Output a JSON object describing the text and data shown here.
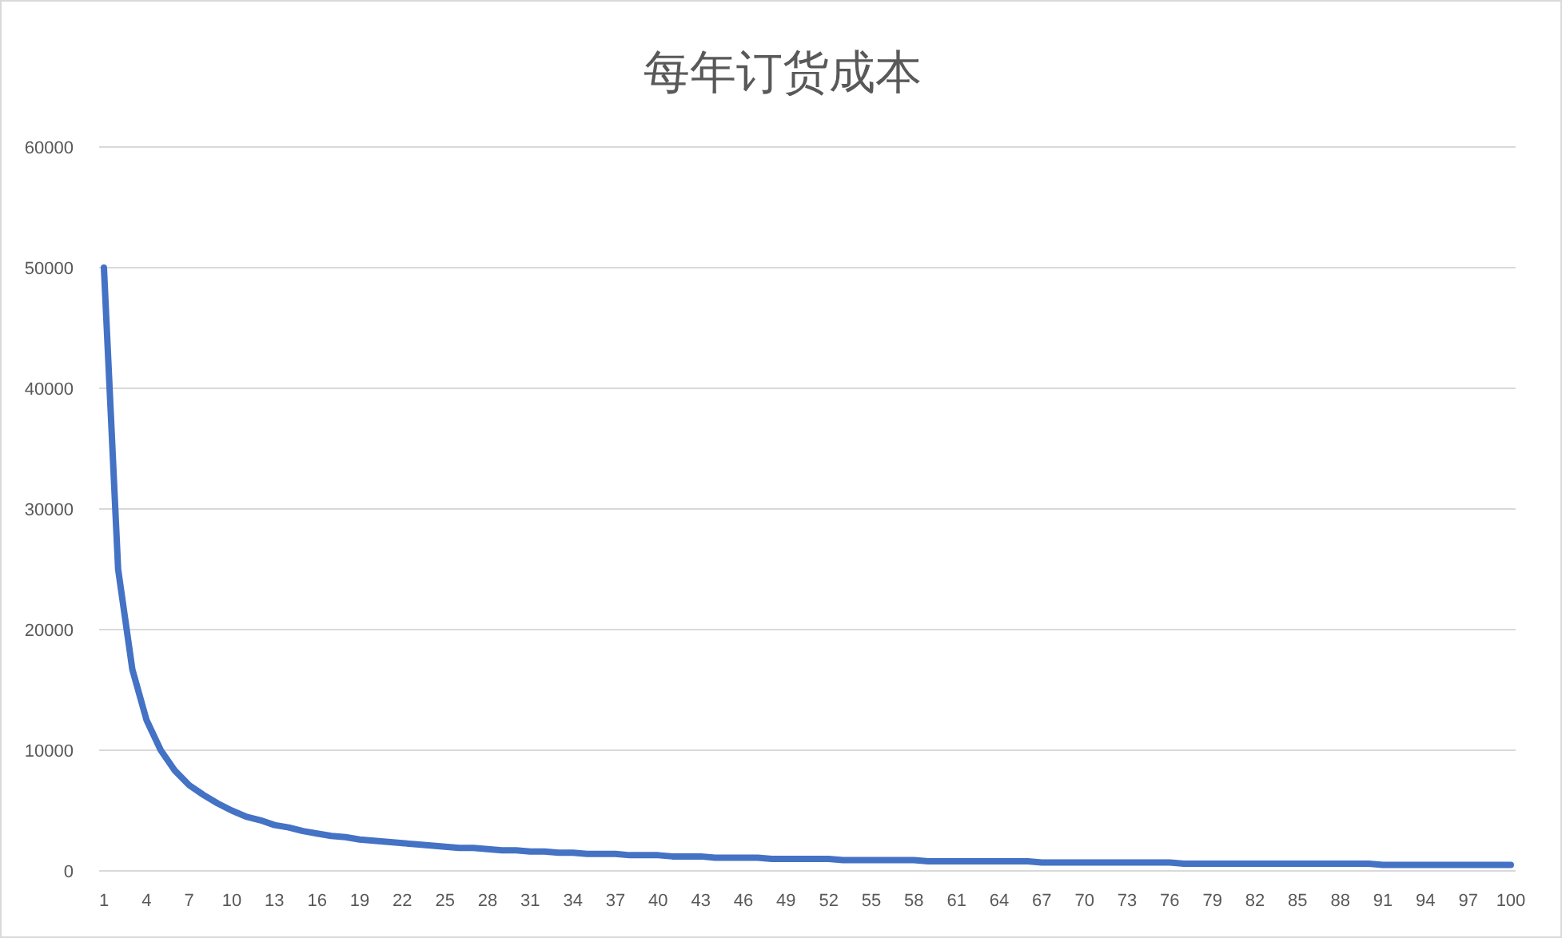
{
  "chart_data": {
    "type": "line",
    "title": "每年订货成本",
    "categories": [
      "1",
      null,
      null,
      "4",
      null,
      null,
      "7",
      null,
      null,
      "10",
      null,
      null,
      "13",
      null,
      null,
      "16",
      null,
      null,
      "19",
      null,
      null,
      "22",
      null,
      null,
      "25",
      null,
      null,
      "28",
      null,
      null,
      "31",
      null,
      null,
      "34",
      null,
      null,
      "37",
      null,
      null,
      "40",
      null,
      null,
      "43",
      null,
      null,
      "46",
      null,
      null,
      "49",
      null,
      null,
      "52",
      null,
      null,
      "55",
      null,
      null,
      "58",
      null,
      null,
      "61",
      null,
      null,
      "64",
      null,
      null,
      "67",
      null,
      null,
      "70",
      null,
      null,
      "73",
      null,
      null,
      "76",
      null,
      null,
      "79",
      null,
      null,
      "82",
      null,
      null,
      "85",
      null,
      null,
      "88",
      null,
      null,
      "91",
      null,
      null,
      "94",
      null,
      null,
      "97",
      null,
      null,
      "100"
    ],
    "values": [
      50000,
      25000,
      16700,
      12500,
      10000,
      8300,
      7100,
      6300,
      5600,
      5000,
      4500,
      4200,
      3800,
      3600,
      3300,
      3100,
      2900,
      2800,
      2600,
      2500,
      2400,
      2300,
      2200,
      2100,
      2000,
      1900,
      1900,
      1800,
      1700,
      1700,
      1600,
      1600,
      1500,
      1500,
      1400,
      1400,
      1400,
      1300,
      1300,
      1300,
      1200,
      1200,
      1200,
      1100,
      1100,
      1100,
      1100,
      1000,
      1000,
      1000,
      1000,
      1000,
      900,
      900,
      900,
      900,
      900,
      900,
      800,
      800,
      800,
      800,
      800,
      800,
      800,
      800,
      700,
      700,
      700,
      700,
      700,
      700,
      700,
      700,
      700,
      700,
      600,
      600,
      600,
      600,
      600,
      600,
      600,
      600,
      600,
      600,
      600,
      600,
      600,
      600,
      500,
      500,
      500,
      500,
      500,
      500,
      500,
      500,
      500,
      500
    ],
    "color": "#4472c4",
    "ylim": [
      0,
      60000
    ],
    "yticks": [
      0,
      10000,
      20000,
      30000,
      40000,
      50000,
      60000
    ],
    "grid": "y"
  }
}
